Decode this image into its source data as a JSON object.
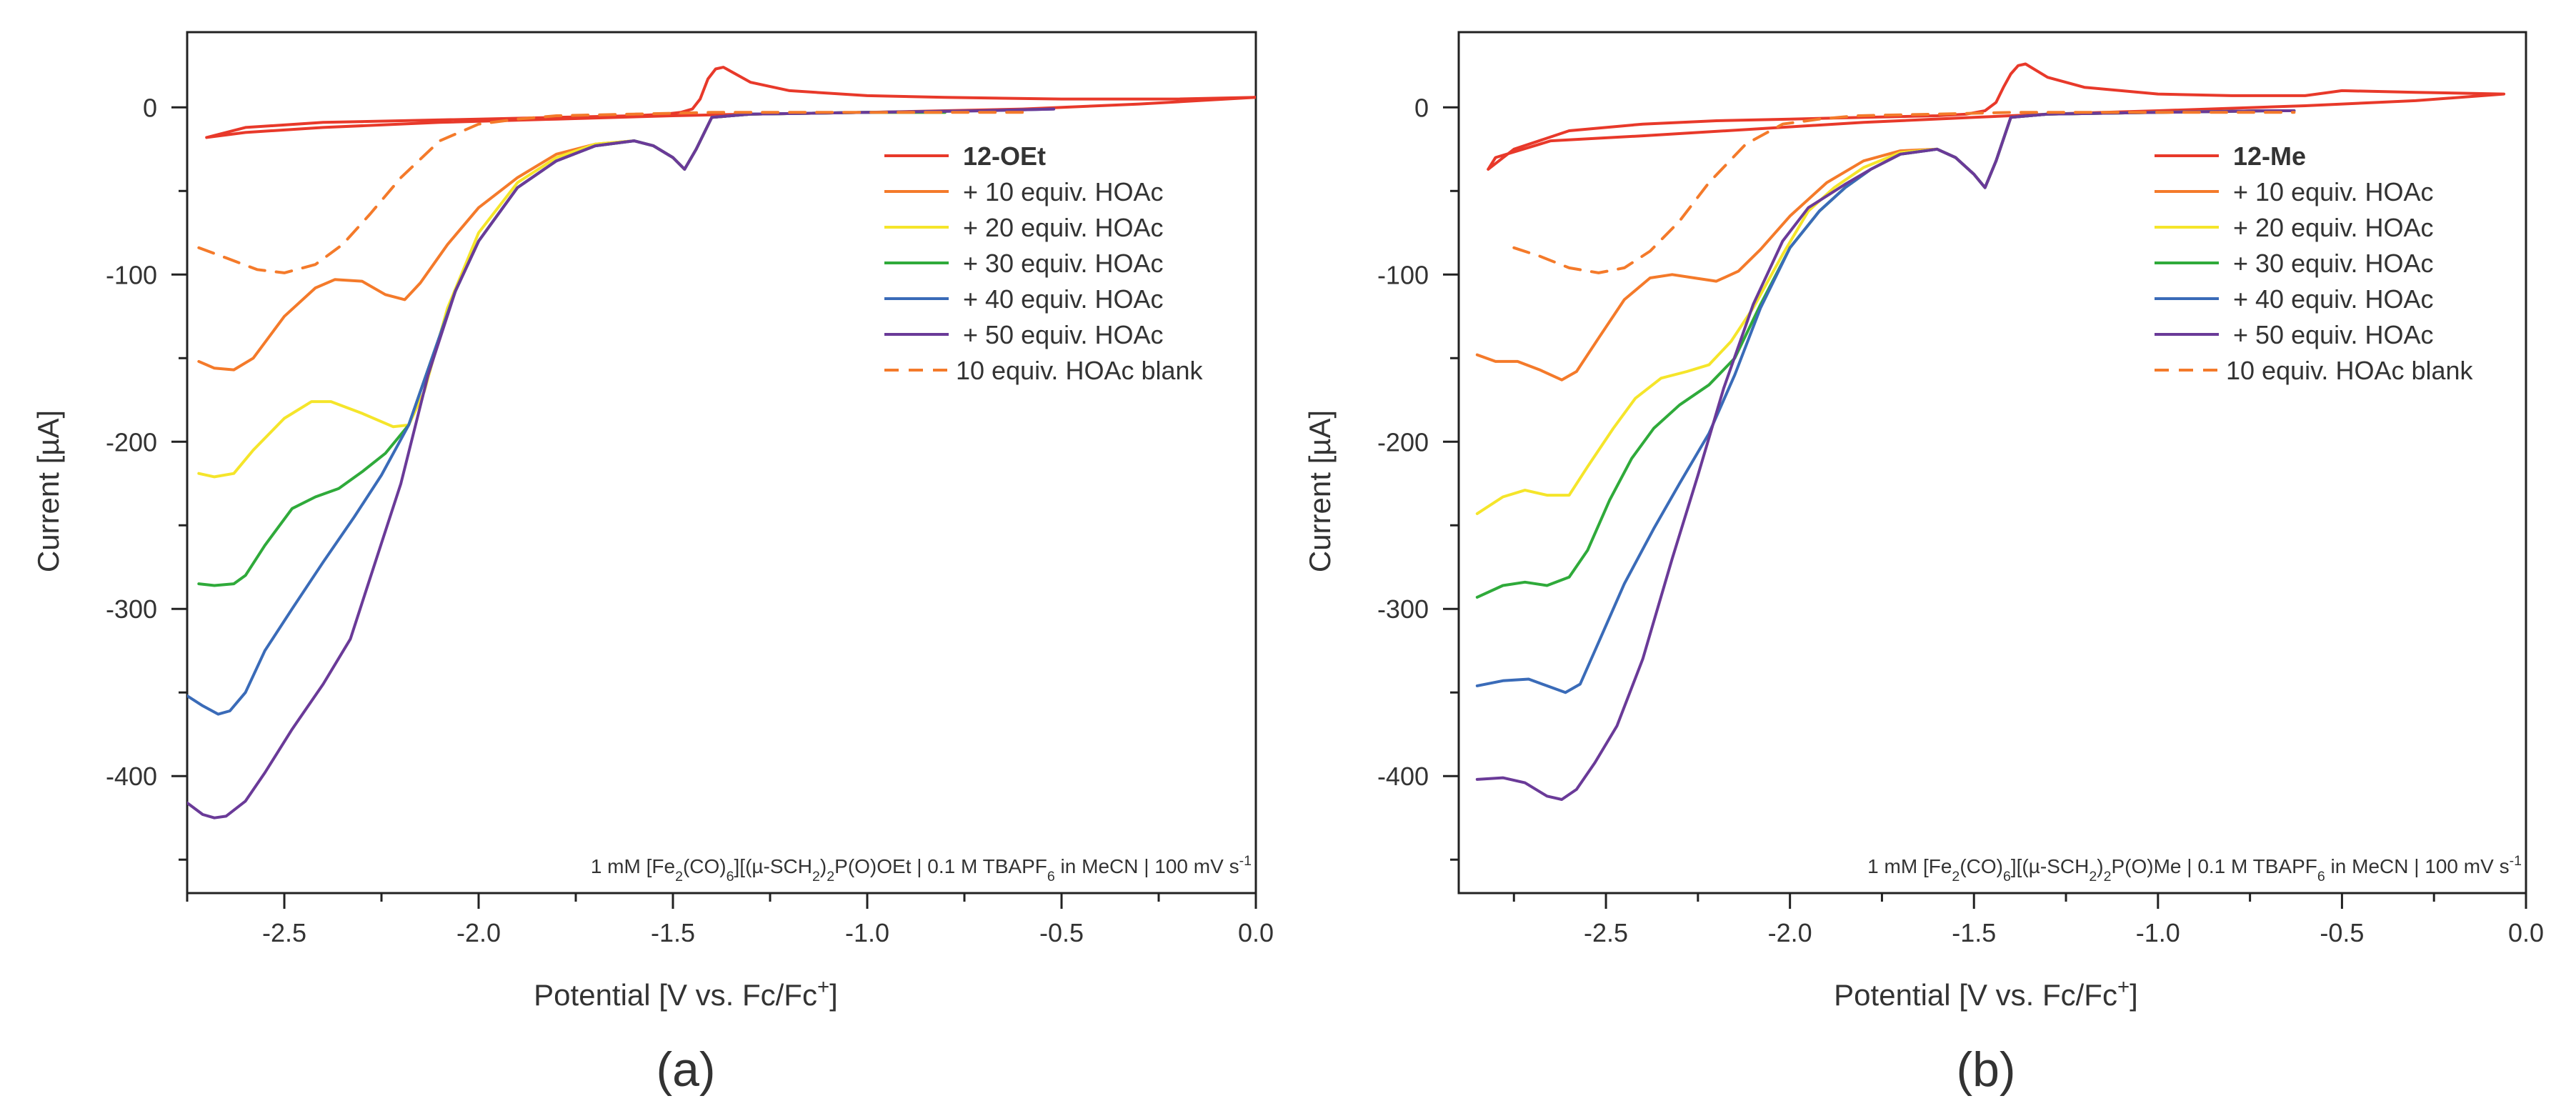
{
  "chart_data": [
    {
      "type": "line",
      "panel_label": "(a)",
      "xlabel": "Potential [V vs. Fc/Fc+]",
      "xlabel_parts": [
        "Potential [V vs. Fc/Fc",
        "+",
        "]"
      ],
      "ylabel": "Current [µA]",
      "xlim": [
        -2.75,
        0.0
      ],
      "ylim": [
        -470,
        45
      ],
      "xticks": [
        -2.5,
        -2.0,
        -1.5,
        -1.0,
        -0.5,
        0.0
      ],
      "xtick_labels": [
        "-2.5",
        "-2.0",
        "-1.5",
        "-1.0",
        "-0.5",
        "0.0"
      ],
      "yticks": [
        0,
        -100,
        -200,
        -300,
        -400
      ],
      "ytick_labels": [
        "0",
        "-100",
        "-200",
        "-300",
        "-400"
      ],
      "legend_position": "top-right",
      "caption_parts": [
        "1 mM [Fe",
        "2",
        "(CO)",
        "6",
        "][(µ-SCH",
        "2",
        ")",
        "2",
        "P(O)OEt | 0.1 M TBAPF",
        "6",
        " in MeCN | 100 mV s",
        "-1"
      ],
      "series": [
        {
          "name": "12-OEt",
          "bold": true,
          "color": "#e8392a",
          "dash": false,
          "x": [
            -2.7,
            -2.6,
            -2.4,
            -2.2,
            -2.0,
            -1.8,
            -1.6,
            -1.52,
            -1.48,
            -1.45,
            -1.43,
            -1.41,
            -1.39,
            -1.37,
            -1.3,
            -1.2,
            -1.0,
            -0.8,
            -0.5,
            -0.2,
            0.0,
            -0.3,
            -0.6,
            -1.0,
            -1.3,
            -1.5,
            -1.8,
            -2.1,
            -2.4,
            -2.6,
            -2.7
          ],
          "y": [
            -18,
            -12,
            -9,
            -8,
            -7,
            -6,
            -5,
            -4,
            -3,
            -1,
            5,
            17,
            23,
            24,
            15,
            10,
            7,
            6,
            5,
            5,
            6,
            2,
            -1,
            -3,
            -4,
            -5,
            -7,
            -9,
            -12,
            -15,
            -18
          ]
        },
        {
          "name": "+ 10 equiv. HOAc",
          "bold": false,
          "color": "#f47a2a",
          "dash": false,
          "x": [
            -2.72,
            -2.68,
            -2.63,
            -2.58,
            -2.5,
            -2.42,
            -2.37,
            -2.3,
            -2.24,
            -2.19,
            -2.15,
            -2.08,
            -2.0,
            -1.9,
            -1.8,
            -1.7,
            -1.6,
            -1.55,
            -1.5,
            -1.47,
            -1.44,
            -1.4,
            -1.3,
            -1.0,
            -0.8
          ],
          "y": [
            -152,
            -156,
            -157,
            -150,
            -125,
            -108,
            -103,
            -104,
            -112,
            -115,
            -105,
            -82,
            -60,
            -42,
            -28,
            -22,
            -20,
            -23,
            -30,
            -37,
            -25,
            -6,
            -4,
            -3,
            -3
          ]
        },
        {
          "name": "+ 20 equiv. HOAc",
          "bold": false,
          "color": "#f5e52a",
          "dash": false,
          "x": [
            -2.72,
            -2.68,
            -2.63,
            -2.58,
            -2.5,
            -2.43,
            -2.38,
            -2.3,
            -2.22,
            -2.18,
            -2.14,
            -2.08,
            -2.0,
            -1.9,
            -1.8,
            -1.7,
            -1.6,
            -1.55,
            -1.5,
            -1.47,
            -1.44,
            -1.4,
            -1.3,
            -1.0,
            -0.8
          ],
          "y": [
            -219,
            -221,
            -219,
            -205,
            -186,
            -176,
            -176,
            -183,
            -191,
            -190,
            -170,
            -120,
            -75,
            -45,
            -30,
            -22,
            -20,
            -23,
            -30,
            -37,
            -25,
            -6,
            -4,
            -3,
            -3
          ]
        },
        {
          "name": "+ 30 equiv. HOAc",
          "bold": false,
          "color": "#2faa3a",
          "dash": false,
          "x": [
            -2.72,
            -2.68,
            -2.63,
            -2.6,
            -2.55,
            -2.48,
            -2.42,
            -2.36,
            -2.3,
            -2.24,
            -2.18,
            -2.12,
            -2.06,
            -2.0,
            -1.9,
            -1.8,
            -1.7,
            -1.6,
            -1.55,
            -1.5,
            -1.47,
            -1.44,
            -1.4,
            -1.3,
            -1.0,
            -0.8
          ],
          "y": [
            -285,
            -286,
            -285,
            -280,
            -262,
            -240,
            -233,
            -228,
            -218,
            -207,
            -190,
            -150,
            -110,
            -80,
            -48,
            -32,
            -23,
            -20,
            -23,
            -30,
            -37,
            -25,
            -6,
            -4,
            -3,
            -3
          ]
        },
        {
          "name": "+ 40 equiv. HOAc",
          "bold": false,
          "color": "#3a6bb8",
          "dash": false,
          "x": [
            -2.75,
            -2.71,
            -2.67,
            -2.64,
            -2.6,
            -2.55,
            -2.48,
            -2.4,
            -2.32,
            -2.25,
            -2.18,
            -2.12,
            -2.06,
            -2.0,
            -1.9,
            -1.8,
            -1.7,
            -1.6,
            -1.55,
            -1.5,
            -1.47,
            -1.44,
            -1.4,
            -1.3,
            -1.0,
            -0.7,
            -0.52
          ],
          "y": [
            -352,
            -358,
            -363,
            -361,
            -350,
            -325,
            -300,
            -272,
            -245,
            -220,
            -190,
            -150,
            -110,
            -80,
            -48,
            -32,
            -23,
            -20,
            -23,
            -30,
            -37,
            -25,
            -6,
            -4,
            -3,
            -2,
            -1
          ]
        },
        {
          "name": "+ 50 equiv. HOAc",
          "bold": false,
          "color": "#6a3a98",
          "dash": false,
          "x": [
            -2.75,
            -2.71,
            -2.68,
            -2.65,
            -2.6,
            -2.55,
            -2.48,
            -2.4,
            -2.33,
            -2.27,
            -2.2,
            -2.13,
            -2.06,
            -2.0,
            -1.9,
            -1.8,
            -1.7,
            -1.6,
            -1.55,
            -1.5,
            -1.47,
            -1.44,
            -1.4,
            -1.3,
            -1.0,
            -0.7,
            -0.52
          ],
          "y": [
            -416,
            -423,
            -425,
            -424,
            -415,
            -398,
            -372,
            -345,
            -318,
            -275,
            -225,
            -160,
            -110,
            -80,
            -48,
            -32,
            -23,
            -20,
            -23,
            -30,
            -37,
            -25,
            -6,
            -4,
            -3,
            -2,
            -1
          ]
        },
        {
          "name": "10 equiv. HOAc blank",
          "bold": false,
          "color": "#f47a2a",
          "dash": true,
          "x": [
            -2.72,
            -2.65,
            -2.57,
            -2.5,
            -2.42,
            -2.35,
            -2.28,
            -2.2,
            -2.1,
            -2.0,
            -1.9,
            -1.8,
            -1.6,
            -1.4,
            -1.2,
            -1.0,
            -0.8,
            -0.6
          ],
          "y": [
            -84,
            -90,
            -97,
            -99,
            -94,
            -82,
            -64,
            -42,
            -20,
            -10,
            -7,
            -5,
            -4,
            -3,
            -3,
            -3,
            -3,
            -3
          ]
        }
      ]
    },
    {
      "type": "line",
      "panel_label": "(b)",
      "xlabel": "Potential [V vs. Fc/Fc+]",
      "xlabel_parts": [
        "Potential [V vs. Fc/Fc",
        "+",
        "]"
      ],
      "ylabel": "Current [µA]",
      "xlim": [
        -2.9,
        0.0
      ],
      "ylim": [
        -470,
        45
      ],
      "xticks": [
        -2.5,
        -2.0,
        -1.5,
        -1.0,
        -0.5,
        0.0
      ],
      "xtick_labels": [
        "-2.5",
        "-2.0",
        "-1.5",
        "-1.0",
        "-0.5",
        "0.0"
      ],
      "yticks": [
        0,
        -100,
        -200,
        -300,
        -400
      ],
      "ytick_labels": [
        "0",
        "-100",
        "-200",
        "-300",
        "-400"
      ],
      "legend_position": "top-right",
      "caption_parts": [
        "1 mM [Fe",
        "2",
        "(CO)",
        "6",
        "][(µ-SCH",
        "2",
        ")",
        "2",
        "P(O)Me | 0.1 M TBAPF",
        "6",
        " in MeCN | 100 mV s",
        "-1"
      ],
      "series": [
        {
          "name": "12-Me",
          "bold": true,
          "color": "#e8392a",
          "dash": false,
          "x": [
            -2.82,
            -2.75,
            -2.6,
            -2.4,
            -2.2,
            -2.0,
            -1.8,
            -1.6,
            -1.52,
            -1.47,
            -1.44,
            -1.42,
            -1.4,
            -1.38,
            -1.36,
            -1.3,
            -1.2,
            -1.0,
            -0.8,
            -0.6,
            -0.5,
            -0.3,
            -0.06,
            -0.3,
            -0.6,
            -1.0,
            -1.3,
            -1.5,
            -1.8,
            -2.1,
            -2.4,
            -2.65,
            -2.8,
            -2.82
          ],
          "y": [
            -37,
            -25,
            -14,
            -10,
            -8,
            -7,
            -6,
            -5,
            -4,
            -2,
            3,
            12,
            20,
            25,
            26,
            18,
            12,
            8,
            7,
            7,
            10,
            9,
            8,
            4,
            1,
            -2,
            -4,
            -6,
            -9,
            -13,
            -17,
            -20,
            -30,
            -37
          ]
        },
        {
          "name": "+ 10 equiv. HOAc",
          "bold": false,
          "color": "#f47a2a",
          "dash": false,
          "x": [
            -2.85,
            -2.8,
            -2.74,
            -2.68,
            -2.62,
            -2.58,
            -2.52,
            -2.45,
            -2.38,
            -2.32,
            -2.26,
            -2.2,
            -2.14,
            -2.08,
            -2.0,
            -1.9,
            -1.8,
            -1.7,
            -1.6,
            -1.55,
            -1.5,
            -1.47,
            -1.44,
            -1.4,
            -1.3,
            -1.0,
            -0.7,
            -0.63
          ],
          "y": [
            -148,
            -152,
            -152,
            -157,
            -163,
            -158,
            -138,
            -115,
            -102,
            -100,
            -102,
            -104,
            -98,
            -85,
            -65,
            -45,
            -32,
            -26,
            -25,
            -30,
            -40,
            -48,
            -32,
            -6,
            -4,
            -3,
            -2,
            -2
          ]
        },
        {
          "name": "+ 20 equiv. HOAc",
          "bold": false,
          "color": "#f5e52a",
          "dash": false,
          "x": [
            -2.85,
            -2.78,
            -2.72,
            -2.66,
            -2.6,
            -2.55,
            -2.48,
            -2.42,
            -2.35,
            -2.28,
            -2.22,
            -2.16,
            -2.1,
            -2.02,
            -1.95,
            -1.88,
            -1.8,
            -1.7,
            -1.6,
            -1.55,
            -1.5,
            -1.47,
            -1.44,
            -1.4,
            -1.3,
            -1.0,
            -0.7,
            -0.63
          ],
          "y": [
            -243,
            -233,
            -229,
            -232,
            -232,
            -215,
            -192,
            -174,
            -162,
            -158,
            -154,
            -140,
            -120,
            -88,
            -62,
            -48,
            -36,
            -27,
            -25,
            -30,
            -40,
            -48,
            -32,
            -6,
            -4,
            -3,
            -2,
            -2
          ]
        },
        {
          "name": "+ 30 equiv. HOAc",
          "bold": false,
          "color": "#2faa3a",
          "dash": false,
          "x": [
            -2.85,
            -2.78,
            -2.72,
            -2.66,
            -2.6,
            -2.55,
            -2.49,
            -2.43,
            -2.37,
            -2.3,
            -2.22,
            -2.15,
            -2.08,
            -2.0,
            -1.92,
            -1.85,
            -1.78,
            -1.7,
            -1.6,
            -1.55,
            -1.5,
            -1.47,
            -1.44,
            -1.4,
            -1.3,
            -1.0,
            -0.7,
            -0.63
          ],
          "y": [
            -293,
            -286,
            -284,
            -286,
            -281,
            -265,
            -235,
            -210,
            -192,
            -178,
            -166,
            -150,
            -118,
            -84,
            -62,
            -48,
            -37,
            -28,
            -25,
            -30,
            -40,
            -48,
            -32,
            -6,
            -4,
            -3,
            -2,
            -2
          ]
        },
        {
          "name": "+ 40 equiv. HOAc",
          "bold": false,
          "color": "#3a6bb8",
          "dash": false,
          "x": [
            -2.85,
            -2.78,
            -2.71,
            -2.66,
            -2.61,
            -2.57,
            -2.52,
            -2.45,
            -2.37,
            -2.3,
            -2.22,
            -2.15,
            -2.08,
            -2.0,
            -1.92,
            -1.85,
            -1.78,
            -1.7,
            -1.6,
            -1.55,
            -1.5,
            -1.47,
            -1.44,
            -1.4,
            -1.3,
            -1.0,
            -0.7,
            -0.63
          ],
          "y": [
            -346,
            -343,
            -342,
            -346,
            -350,
            -345,
            -320,
            -285,
            -252,
            -225,
            -195,
            -160,
            -120,
            -84,
            -62,
            -48,
            -37,
            -28,
            -25,
            -30,
            -40,
            -48,
            -32,
            -6,
            -4,
            -3,
            -2,
            -2
          ]
        },
        {
          "name": "+ 50 equiv. HOAc",
          "bold": false,
          "color": "#6a3a98",
          "dash": false,
          "x": [
            -2.85,
            -2.78,
            -2.72,
            -2.66,
            -2.62,
            -2.58,
            -2.53,
            -2.47,
            -2.4,
            -2.32,
            -2.25,
            -2.18,
            -2.1,
            -2.02,
            -1.95,
            -1.85,
            -1.78,
            -1.7,
            -1.6,
            -1.55,
            -1.5,
            -1.47,
            -1.44,
            -1.4,
            -1.3,
            -1.0,
            -0.7,
            -0.63
          ],
          "y": [
            -402,
            -401,
            -404,
            -412,
            -414,
            -408,
            -392,
            -370,
            -330,
            -270,
            -220,
            -168,
            -118,
            -80,
            -60,
            -46,
            -37,
            -28,
            -25,
            -30,
            -40,
            -48,
            -32,
            -6,
            -4,
            -3,
            -2,
            -2
          ]
        },
        {
          "name": "10 equiv. HOAc blank",
          "bold": false,
          "color": "#f47a2a",
          "dash": true,
          "x": [
            -2.75,
            -2.68,
            -2.6,
            -2.52,
            -2.45,
            -2.38,
            -2.3,
            -2.22,
            -2.12,
            -2.02,
            -1.92,
            -1.82,
            -1.6,
            -1.4,
            -1.2,
            -1.0,
            -0.8,
            -0.63
          ],
          "y": [
            -84,
            -89,
            -96,
            -99,
            -96,
            -86,
            -68,
            -45,
            -22,
            -10,
            -7,
            -5,
            -4,
            -3,
            -3,
            -3,
            -3,
            -3
          ]
        }
      ]
    }
  ]
}
